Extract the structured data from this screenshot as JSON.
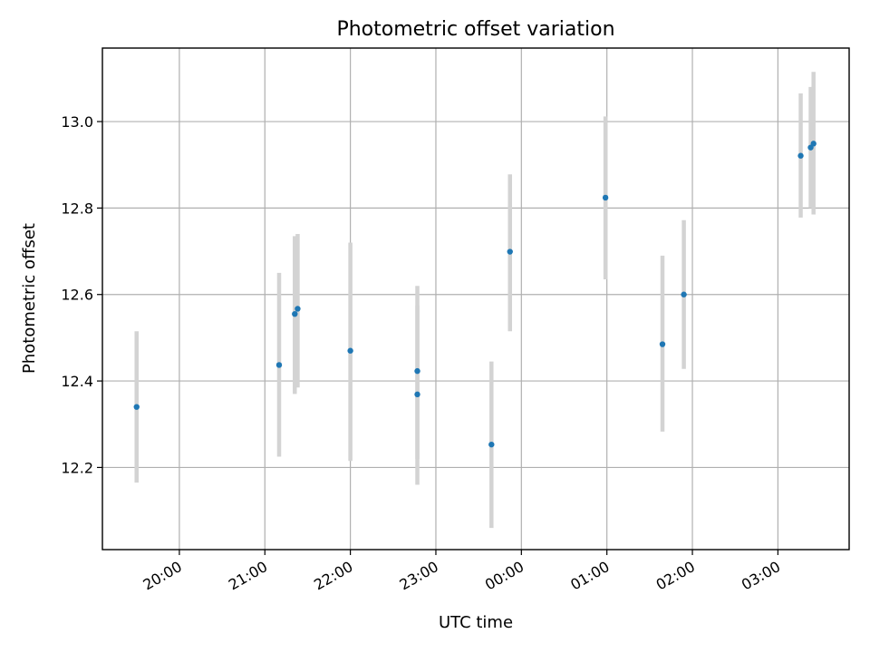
{
  "chart_data": {
    "type": "scatter",
    "title": "Photometric offset variation",
    "xlabel": "UTC time",
    "ylabel": "Photometric offset",
    "x_ticks": [
      "20:00",
      "21:00",
      "22:00",
      "23:00",
      "00:00",
      "01:00",
      "02:00",
      "03:00"
    ],
    "y_ticks": [
      "12.2",
      "12.4",
      "12.6",
      "12.8",
      "13.0"
    ],
    "xlim": [
      "19:06",
      "03:50"
    ],
    "ylim": [
      12.01,
      13.17
    ],
    "grid": true,
    "colors": {
      "point": "#1f77b4",
      "errorbar": "#d3d3d3"
    },
    "series": [
      {
        "points": [
          {
            "x": "19:30",
            "y": 12.34,
            "err_low": 12.165,
            "err_high": 12.515
          },
          {
            "x": "21:10",
            "y": 12.437,
            "err_low": 12.225,
            "err_high": 12.65
          },
          {
            "x": "21:21",
            "y": 12.555,
            "err_low": 12.37,
            "err_high": 12.735
          },
          {
            "x": "21:23",
            "y": 12.567,
            "err_low": 12.385,
            "err_high": 12.74
          },
          {
            "x": "22:00",
            "y": 12.47,
            "err_low": 12.215,
            "err_high": 12.72
          },
          {
            "x": "22:47",
            "y": 12.423,
            "err_low": 12.22,
            "err_high": 12.62
          },
          {
            "x": "22:47",
            "y": 12.369,
            "err_low": 12.16,
            "err_high": 12.575
          },
          {
            "x": "23:39",
            "y": 12.253,
            "err_low": 12.06,
            "err_high": 12.445
          },
          {
            "x": "23:52",
            "y": 12.699,
            "err_low": 12.515,
            "err_high": 12.878
          },
          {
            "x": "00:59",
            "y": 12.824,
            "err_low": 12.635,
            "err_high": 13.012
          },
          {
            "x": "01:39",
            "y": 12.485,
            "err_low": 12.283,
            "err_high": 12.69
          },
          {
            "x": "01:54",
            "y": 12.6,
            "err_low": 12.428,
            "err_high": 12.772
          },
          {
            "x": "03:16",
            "y": 12.921,
            "err_low": 12.778,
            "err_high": 13.065
          },
          {
            "x": "03:23",
            "y": 12.94,
            "err_low": 12.8,
            "err_high": 13.08
          },
          {
            "x": "03:25",
            "y": 12.949,
            "err_low": 12.785,
            "err_high": 13.115
          }
        ]
      }
    ]
  }
}
